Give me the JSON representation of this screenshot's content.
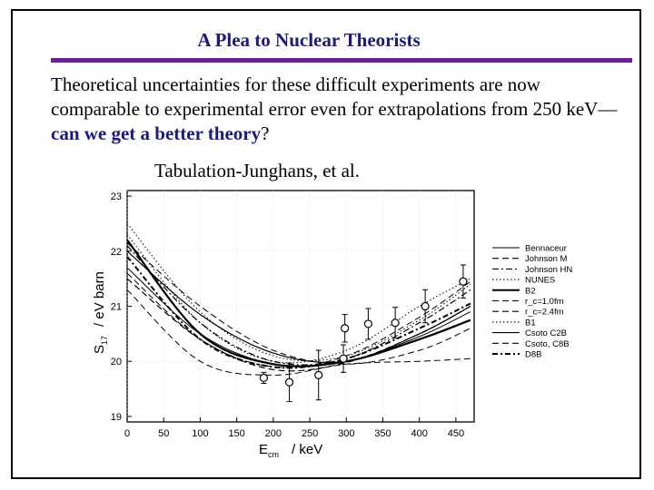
{
  "slide": {
    "title": "A Plea to Nuclear Theorists",
    "body_plain": "Theoretical uncertainties for these difficult experiments are now comparable to experimental error even for extrapolations from 250 keV—",
    "body_highlight": "can we get a better theory",
    "body_end": "?",
    "caption": "Tabulation-Junghans, et al.",
    "colors": {
      "title": "#1a1a80",
      "rule": "#6a1fa0",
      "highlight": "#1a1a80"
    }
  },
  "chart_data": {
    "type": "line",
    "xlabel": "E_cm / keV",
    "xlabel_main": "E",
    "xlabel_sub": "cm",
    "xlabel_unit": "/ keV",
    "ylabel": "S17 / eV barn",
    "ylabel_main": "S",
    "ylabel_sub": "17",
    "ylabel_unit": "/ eV barn",
    "xlim": [
      0,
      475
    ],
    "ylim": [
      18.9,
      23.1
    ],
    "xticks": [
      0,
      50,
      100,
      150,
      200,
      250,
      300,
      350,
      400,
      450
    ],
    "xtick_labels": [
      "0",
      "50",
      "100",
      "150",
      "200",
      "250",
      "300",
      "350",
      "400",
      "450"
    ],
    "yticks": [
      19,
      20,
      21,
      22,
      23
    ],
    "ytick_labels": [
      "19",
      "20",
      "21",
      "22",
      "23"
    ],
    "legend_position": "right",
    "series": [
      {
        "name": "Bennaceur",
        "dash": "solid",
        "width": 1.2,
        "x": [
          0,
          100,
          200,
          300,
          400,
          470
        ],
        "y": [
          22.0,
          20.85,
          20.15,
          20.0,
          20.5,
          21.0
        ]
      },
      {
        "name": "Johnson M",
        "dash": "dashed",
        "width": 1.2,
        "x": [
          0,
          100,
          200,
          300,
          400,
          470
        ],
        "y": [
          21.5,
          20.4,
          19.85,
          19.98,
          20.5,
          21.0
        ]
      },
      {
        "name": "Johnson HN",
        "dash": "dashdot",
        "width": 1.2,
        "x": [
          0,
          100,
          200,
          300,
          400,
          470
        ],
        "y": [
          22.1,
          20.7,
          20.0,
          20.05,
          20.7,
          21.3
        ]
      },
      {
        "name": "NUNES",
        "dash": "dotted",
        "width": 1.0,
        "x": [
          0,
          100,
          200,
          300,
          400,
          470
        ],
        "y": [
          22.3,
          20.7,
          20.0,
          20.2,
          21.0,
          21.5
        ]
      },
      {
        "name": "B2",
        "dash": "solid",
        "width": 2.2,
        "x": [
          0,
          100,
          200,
          300,
          400,
          470
        ],
        "y": [
          22.2,
          20.5,
          19.95,
          20.0,
          20.4,
          20.75
        ]
      },
      {
        "name": "r_c=1.0fm",
        "dash": "dashed",
        "width": 1.0,
        "x": [
          0,
          100,
          200,
          300,
          400,
          470
        ],
        "y": [
          22.15,
          21.0,
          20.2,
          19.95,
          20.2,
          20.6
        ]
      },
      {
        "name": "r_c=2.4fm",
        "dash": "dashed",
        "width": 1.0,
        "x": [
          0,
          100,
          200,
          300,
          400,
          470
        ],
        "y": [
          21.6,
          20.4,
          19.9,
          20.1,
          20.8,
          21.45
        ]
      },
      {
        "name": "B1",
        "dash": "dotted",
        "width": 1.0,
        "x": [
          0,
          100,
          200,
          300,
          400,
          470
        ],
        "y": [
          22.5,
          20.9,
          20.1,
          20.1,
          20.75,
          21.4
        ]
      },
      {
        "name": "Csoto C2B",
        "dash": "solid",
        "width": 1.0,
        "x": [
          0,
          100,
          200,
          300,
          400,
          470
        ],
        "y": [
          21.7,
          20.5,
          19.95,
          20.0,
          20.45,
          20.9
        ]
      },
      {
        "name": "Csoto, C8B",
        "dash": "dashed",
        "width": 1.0,
        "x": [
          0,
          100,
          200,
          300,
          400,
          470
        ],
        "y": [
          21.3,
          20.0,
          19.75,
          19.95,
          20.0,
          20.05
        ]
      },
      {
        "name": "D8B",
        "dash": "dashdotbold",
        "width": 2.0,
        "x": [
          0,
          100,
          200,
          300,
          400,
          470
        ],
        "y": [
          21.9,
          20.4,
          19.9,
          20.05,
          20.6,
          21.05
        ]
      }
    ],
    "legend_labels": [
      "Bennaceur",
      "Johnson M",
      "Johnson HN",
      "NUNES",
      "B2",
      "r_c=1.0fm",
      "r_c=2.4fm",
      "B1",
      "Csoto C2B",
      "Csoto, C8B",
      "D8B"
    ],
    "legend_styles": [
      "solid",
      "dashed",
      "dashdot",
      "dotted",
      "solid",
      "dashed",
      "dashed",
      "dotted",
      "solid",
      "dashed",
      "dashdotbold"
    ],
    "data_points": [
      {
        "x": 187,
        "y": 19.7,
        "err": 0.1
      },
      {
        "x": 222,
        "y": 19.62,
        "err": 0.35
      },
      {
        "x": 262,
        "y": 19.75,
        "err": 0.45
      },
      {
        "x": 296,
        "y": 20.05,
        "err": 0.25
      },
      {
        "x": 298,
        "y": 20.6,
        "err": 0.25
      },
      {
        "x": 330,
        "y": 20.68,
        "err": 0.28
      },
      {
        "x": 367,
        "y": 20.7,
        "err": 0.28
      },
      {
        "x": 408,
        "y": 21.0,
        "err": 0.3
      },
      {
        "x": 460,
        "y": 21.45,
        "err": 0.3
      }
    ]
  }
}
